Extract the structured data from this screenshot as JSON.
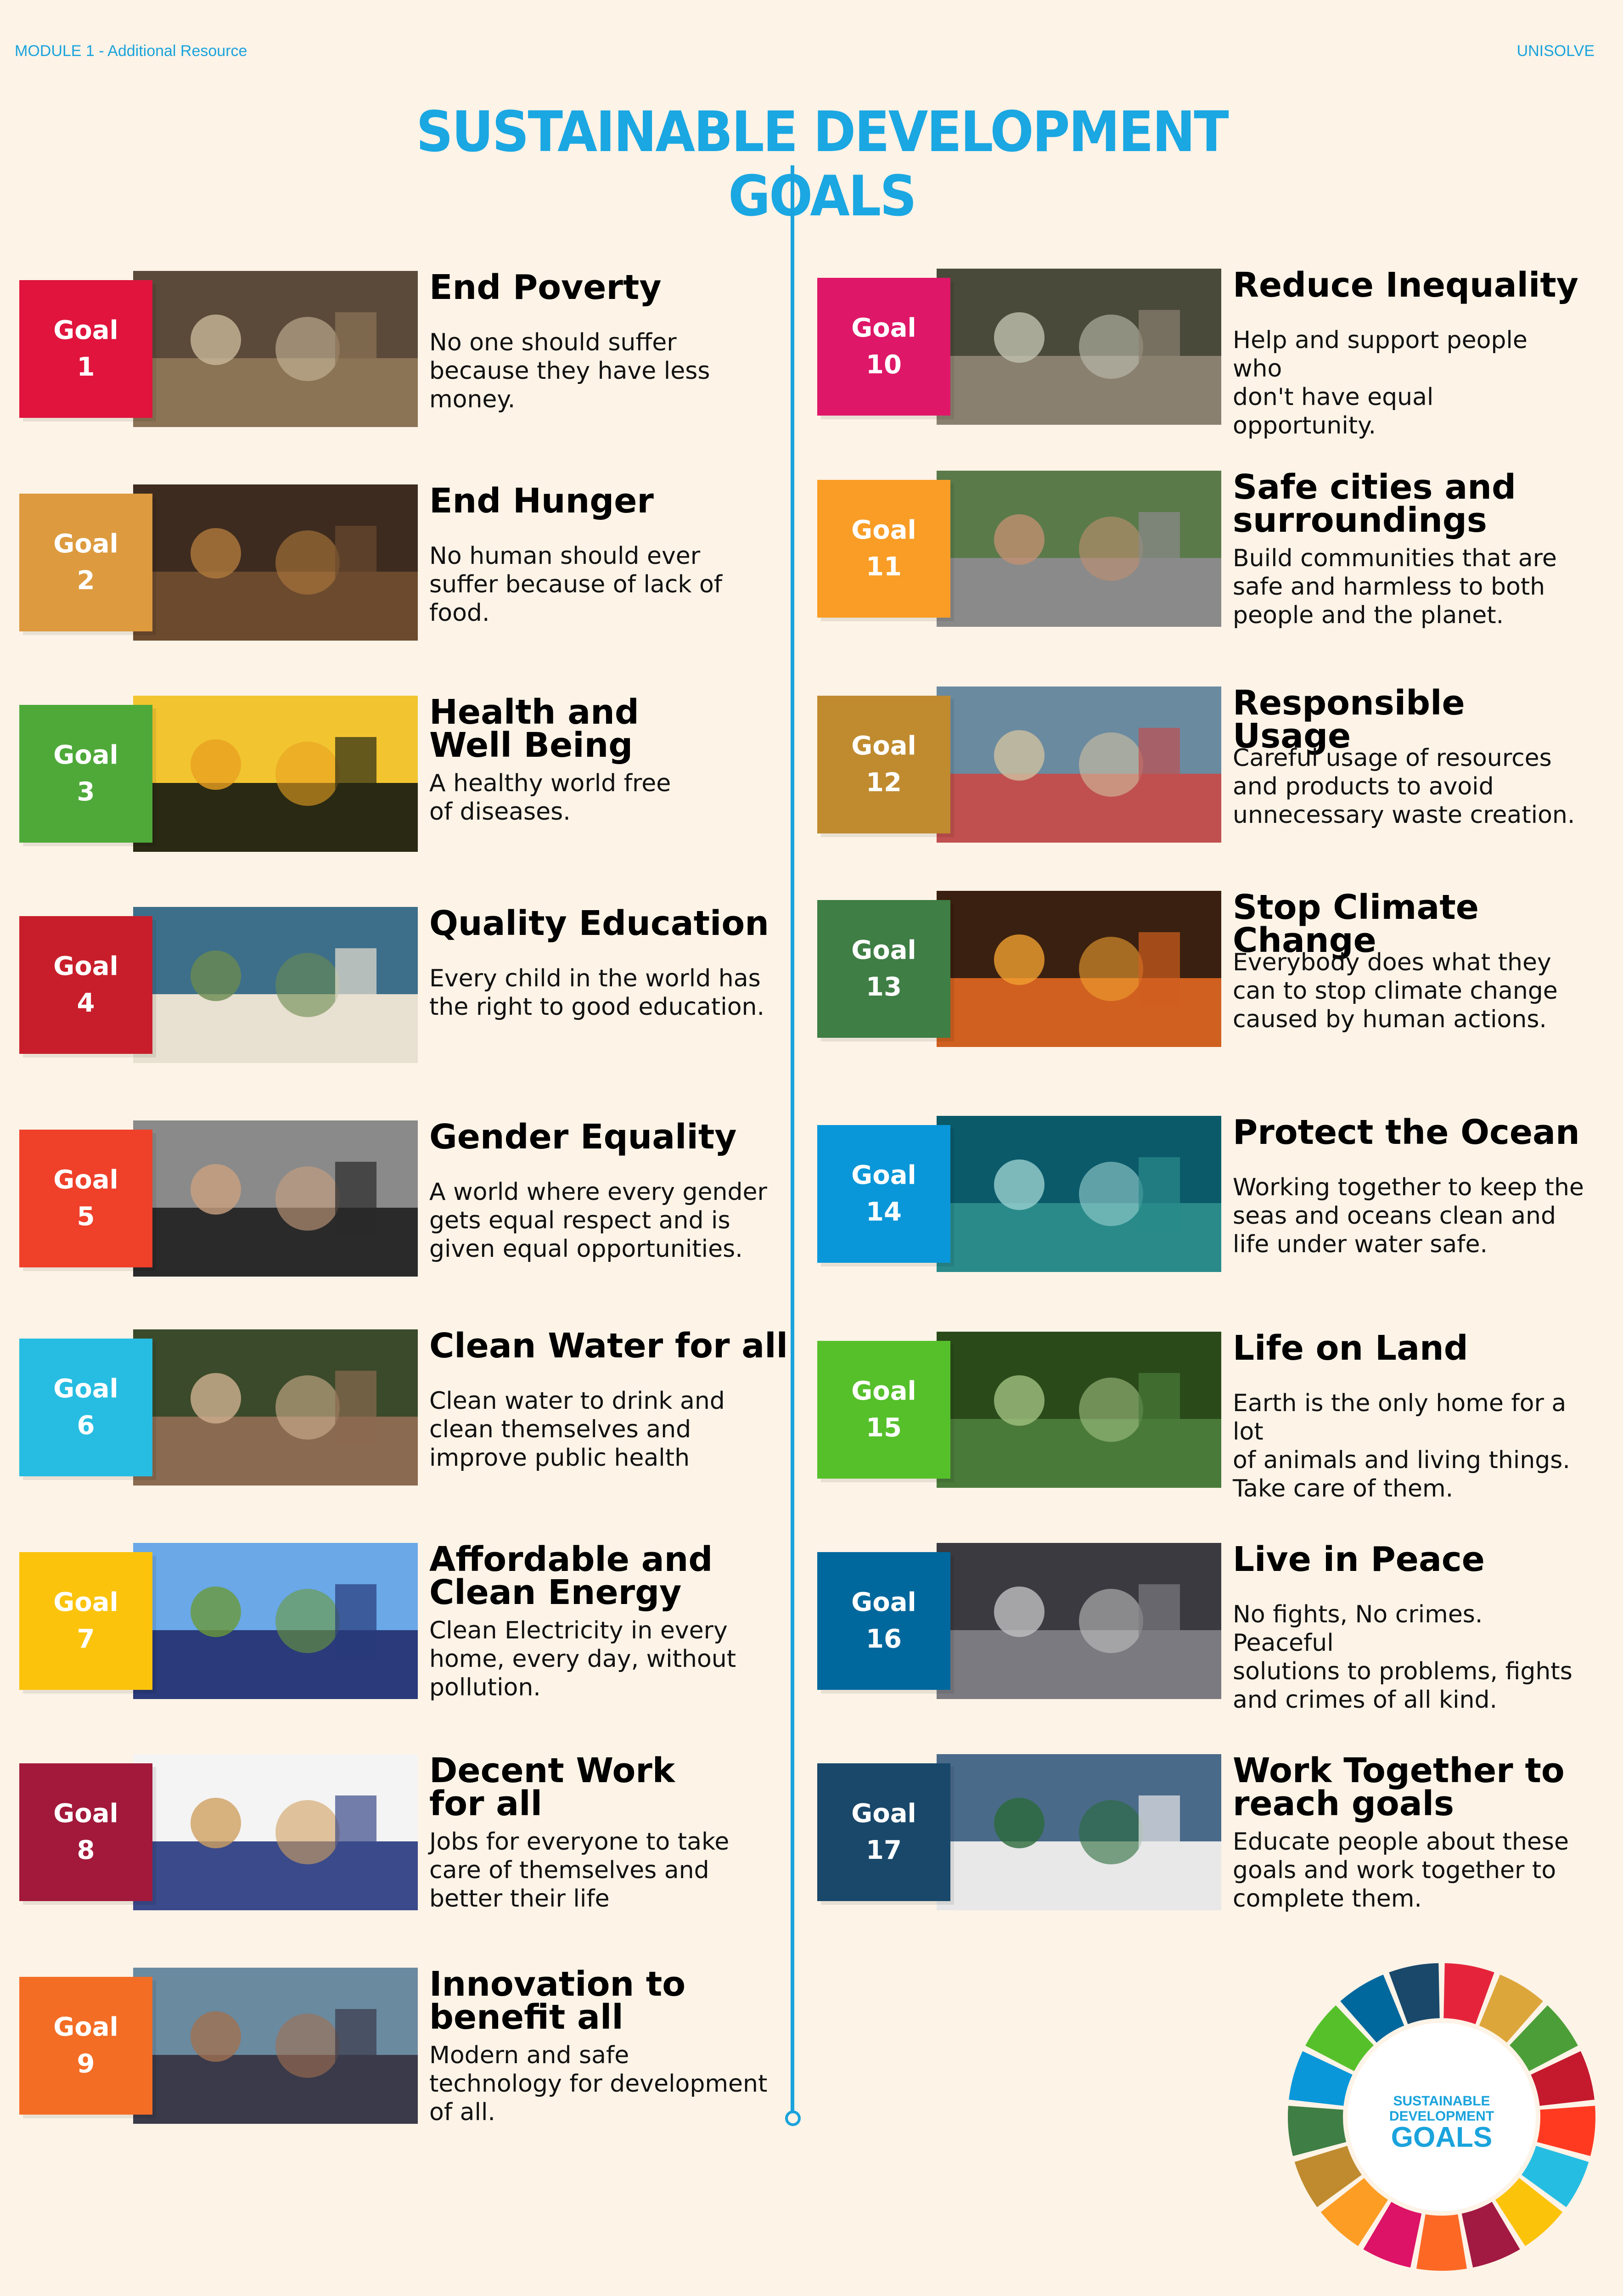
{
  "header": {
    "module": "MODULE 1 - Additional Resource",
    "brand": "UNISOLVE"
  },
  "title": "SUSTAINABLE DEVELOPMENT GOALS",
  "goals": [
    {
      "label": "Goal",
      "number": "1",
      "color": "#e0143d",
      "name": "End Poverty",
      "desc": "No one should suffer\nbecause they have less\nmoney."
    },
    {
      "label": "Goal",
      "number": "2",
      "color": "#dd9a3f",
      "name": "End Hunger",
      "desc": "No human should ever\nsuffer because of lack of\nfood."
    },
    {
      "label": "Goal",
      "number": "3",
      "color": "#4ea939",
      "name": "Health and\nWell Being",
      "desc": "A healthy world free\nof diseases."
    },
    {
      "label": "Goal",
      "number": "4",
      "color": "#c81e2b",
      "name": "Quality Education",
      "desc": "Every child in the world has\nthe right to good education."
    },
    {
      "label": "Goal",
      "number": "5",
      "color": "#ef402a",
      "name": "Gender Equality",
      "desc": "A world where every gender\ngets equal respect and is\ngiven equal opportunities."
    },
    {
      "label": "Goal",
      "number": "6",
      "color": "#27bde2",
      "name": "Clean Water for all",
      "desc": "Clean water to drink and\nclean themselves and\nimprove public health"
    },
    {
      "label": "Goal",
      "number": "7",
      "color": "#fbc30c",
      "name": "Affordable and\nClean Energy",
      "desc": "Clean Electricity in every\nhome, every day, without\npollution."
    },
    {
      "label": "Goal",
      "number": "8",
      "color": "#a2193b",
      "name": "Decent Work\nfor all",
      "desc": "Jobs for everyone to take\ncare of themselves and\nbetter their life"
    },
    {
      "label": "Goal",
      "number": "9",
      "color": "#f36d25",
      "name": "Innovation to\nbenefit all",
      "desc": "Modern and safe\ntechnology for development\nof all."
    },
    {
      "label": "Goal",
      "number": "10",
      "color": "#de1768",
      "name": "Reduce Inequality",
      "desc": "Help and support people who\ndon't have equal opportunity."
    },
    {
      "label": "Goal",
      "number": "11",
      "color": "#f99d26",
      "name": "Safe cities and\nsurroundings",
      "desc": "Build communities that are\nsafe and harmless to both\npeople and the planet."
    },
    {
      "label": "Goal",
      "number": "12",
      "color": "#c08b2f",
      "name": "Responsible Usage",
      "desc": "Careful usage of resources\nand products to avoid\nunnecessary waste creation."
    },
    {
      "label": "Goal",
      "number": "13",
      "color": "#3f7e44",
      "name": "Stop Climate Change",
      "desc": "Everybody does what they\ncan to stop climate change\ncaused by human actions."
    },
    {
      "label": "Goal",
      "number": "14",
      "color": "#0a97d9",
      "name": "Protect the Ocean",
      "desc": "Working together to keep the\nseas and oceans clean and\nlife under water safe."
    },
    {
      "label": "Goal",
      "number": "15",
      "color": "#56c02b",
      "name": "Life on Land",
      "desc": "Earth is the only home for a lot\nof animals and living things.\nTake care of them."
    },
    {
      "label": "Goal",
      "number": "16",
      "color": "#00689d",
      "name": "Live in Peace",
      "desc": "No fights, No crimes. Peaceful\nsolutions to problems, fights\nand crimes of all kind."
    },
    {
      "label": "Goal",
      "number": "17",
      "color": "#19486a",
      "name": "Work Together to\nreach goals",
      "desc": "Educate people about these\ngoals and work together to\ncomplete them."
    }
  ],
  "wheel": {
    "line1": "SUSTAINABLE",
    "line2": "DEVELOPMENT",
    "line3": "GOALS",
    "colors": [
      "#e5243b",
      "#dda63a",
      "#4c9f38",
      "#c5192d",
      "#ff3a21",
      "#26bde2",
      "#fcc30b",
      "#a21942",
      "#fd6925",
      "#dd1367",
      "#fd9d24",
      "#bf8b2e",
      "#3f7e44",
      "#0a97d9",
      "#56c02b",
      "#00689d",
      "#19486a"
    ]
  }
}
